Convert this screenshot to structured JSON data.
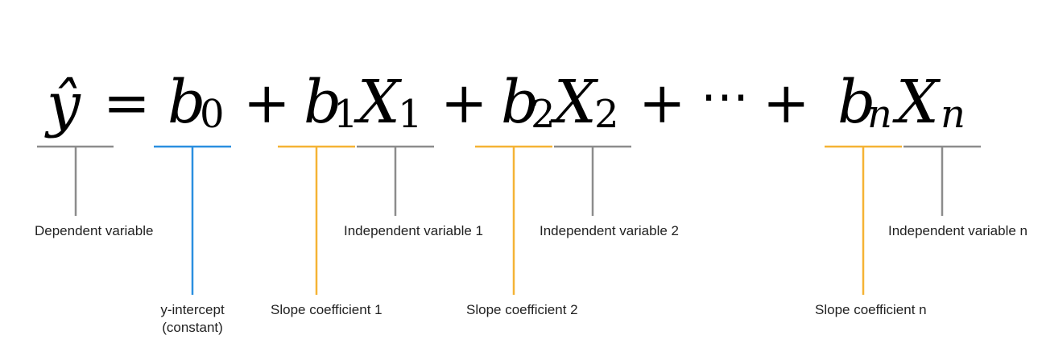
{
  "equation": {
    "y_hat": "ŷ",
    "equals": "=",
    "b0": "b",
    "b0_sub": "0",
    "plus1": "+",
    "b1": "b",
    "b1_sub": "1",
    "x1": "X",
    "x1_sub": "1",
    "plus2": "+",
    "b2": "b",
    "b2_sub": "2",
    "x2": "X",
    "x2_sub": "2",
    "plus3": "+",
    "ellipsis": "⋯",
    "plus4": "+",
    "bn": "b",
    "bn_sub": "n",
    "xn": "X",
    "xn_sub": "n"
  },
  "labels": {
    "dependent": "Dependent variable",
    "intercept_line1": "y-intercept",
    "intercept_line2": "(constant)",
    "slope1": "Slope coefficient 1",
    "indep1": "Independent variable 1",
    "slope2": "Slope coefficient 2",
    "indep2": "Independent variable 2",
    "slopen": "Slope coefficient n",
    "indepn": "Independent variable n"
  },
  "colors": {
    "gray": "#8c8c8c",
    "blue": "#2b8fe0",
    "orange": "#f5b335"
  }
}
